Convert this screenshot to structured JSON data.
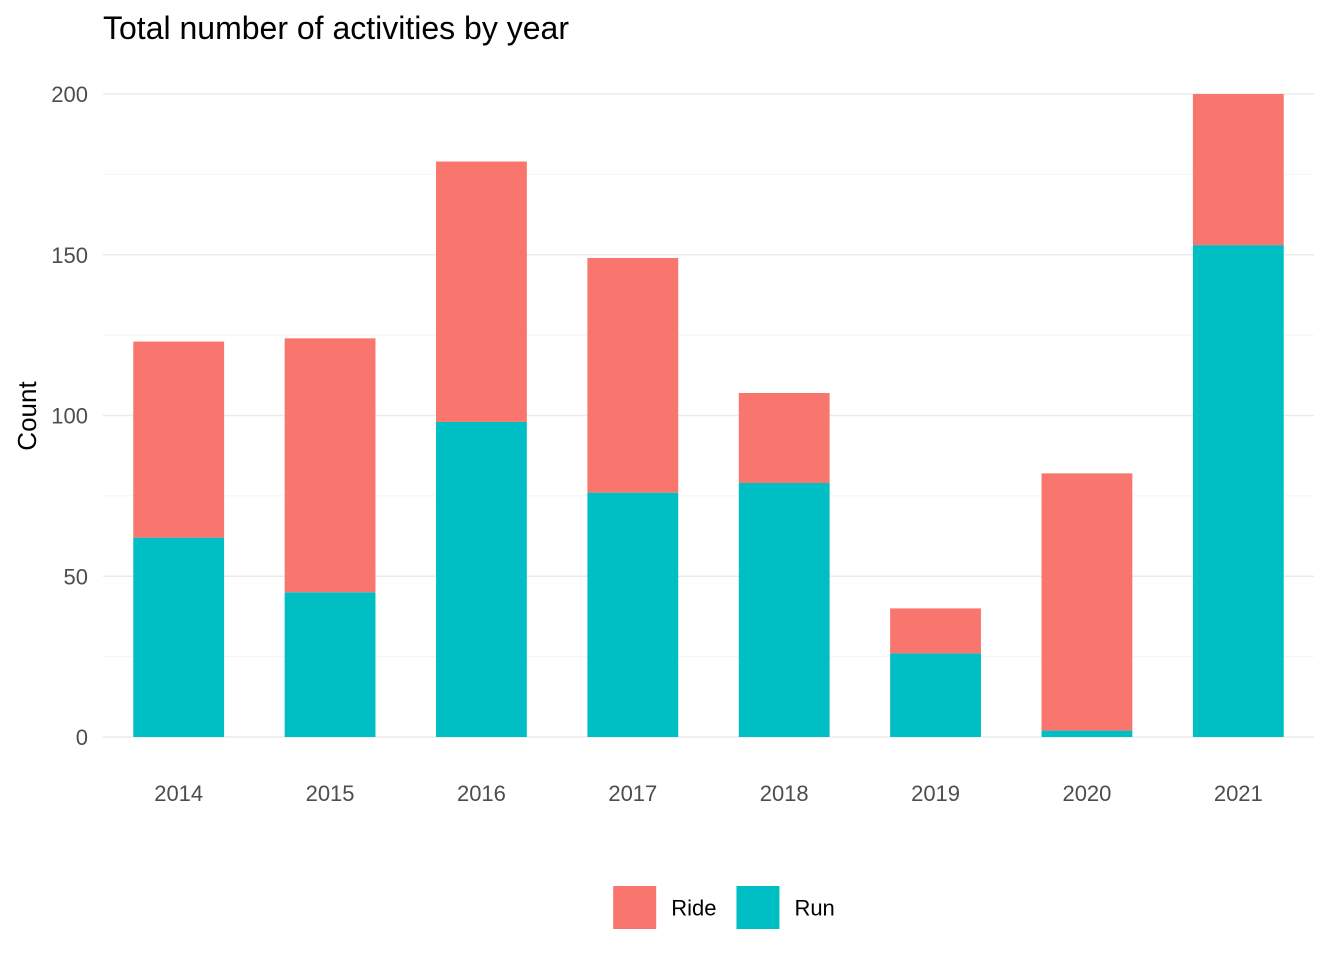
{
  "chart_data": {
    "type": "bar",
    "stacked": true,
    "title": "Total number of activities by year",
    "xlabel": "",
    "ylabel": "Count",
    "categories": [
      "2014",
      "2015",
      "2016",
      "2017",
      "2018",
      "2019",
      "2020",
      "2021"
    ],
    "series": [
      {
        "name": "Run",
        "color": "#00bfc4",
        "values": [
          62,
          45,
          98,
          76,
          79,
          26,
          2,
          153
        ]
      },
      {
        "name": "Ride",
        "color": "#f8766d",
        "values": [
          61,
          79,
          81,
          73,
          28,
          14,
          80,
          47
        ]
      }
    ],
    "stack_order_bottom_to_top": [
      "Run",
      "Ride"
    ],
    "legend_order": [
      "Ride",
      "Run"
    ],
    "ylim": [
      0,
      200
    ],
    "yticks": [
      0,
      50,
      100,
      150,
      200
    ],
    "grid": true,
    "legend_position": "bottom"
  }
}
